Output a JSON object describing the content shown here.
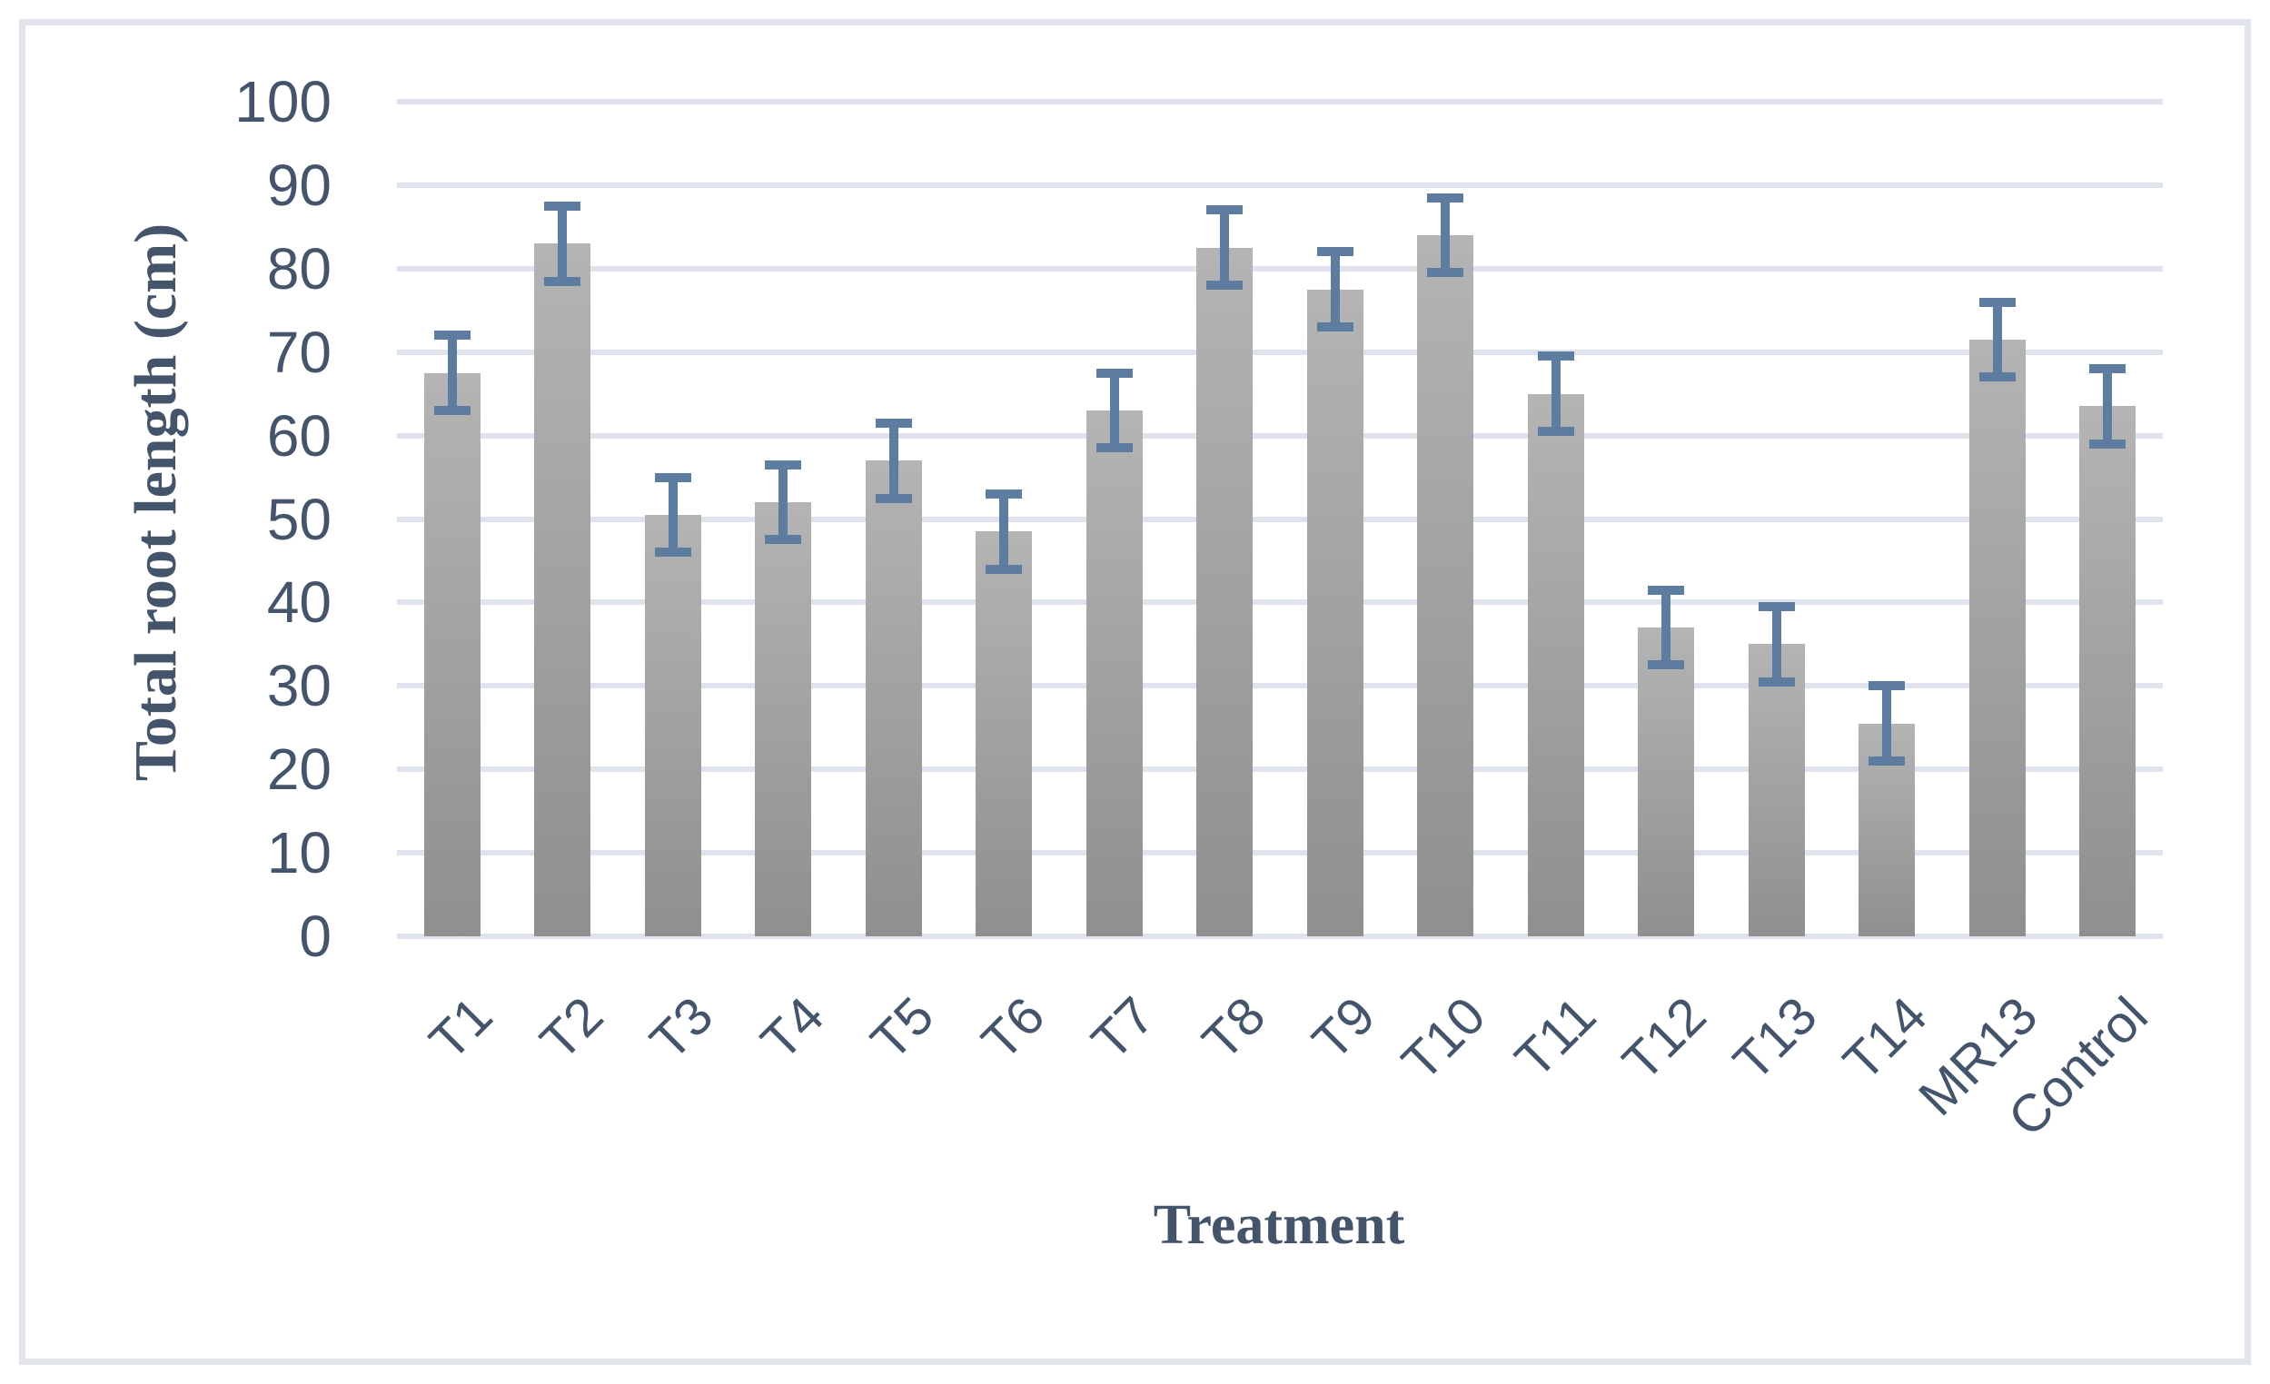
{
  "chart_data": {
    "type": "bar",
    "title": "",
    "xlabel": "Treatment",
    "ylabel": "Total root length (cm)",
    "categories": [
      "T1",
      "T2",
      "T3",
      "T4",
      "T5",
      "T6",
      "T7",
      "T8",
      "T9",
      "T10",
      "T11",
      "T12",
      "T13",
      "T14",
      "MR13",
      "Control"
    ],
    "values": [
      67.5,
      83,
      50.5,
      52,
      57,
      48.5,
      63,
      82.5,
      77.5,
      84,
      65,
      37,
      35,
      25.5,
      71.5,
      63.5
    ],
    "errors": [
      4.5,
      4.5,
      4.5,
      4.5,
      4.5,
      4.5,
      4.5,
      4.5,
      4.5,
      4.5,
      4.5,
      4.5,
      4.5,
      4.5,
      4.5,
      4.5
    ],
    "ylim": [
      0,
      100
    ],
    "yticks": [
      0,
      10,
      20,
      30,
      40,
      50,
      60,
      70,
      80,
      90,
      100
    ],
    "grid": true,
    "legend": "none",
    "colors": {
      "bar_top": "#B4B4B4",
      "bar_bottom": "#8F8F8F",
      "error_bar": "#5E7CA0",
      "axis_text": "#44546A",
      "gridline": "#DEE3ED",
      "chart_border": "#E2E5EC",
      "background": "#FFFFFF"
    }
  }
}
